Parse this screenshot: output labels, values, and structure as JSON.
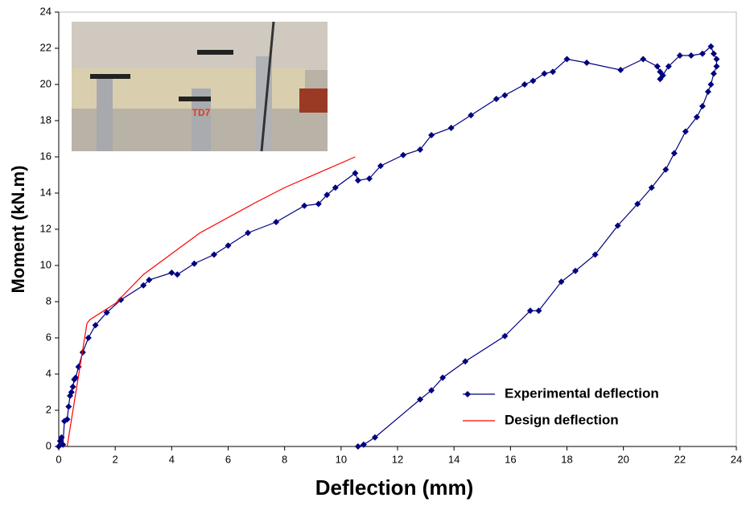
{
  "chart_data": {
    "type": "line",
    "xlabel": "Deflection (mm)",
    "ylabel": "Moment (kN.m)",
    "inset_label": "TD7",
    "xlim": [
      0,
      24
    ],
    "ylim": [
      0,
      24
    ],
    "xticks": [
      0,
      2,
      4,
      6,
      8,
      10,
      12,
      14,
      16,
      18,
      20,
      22,
      24
    ],
    "yticks": [
      0,
      2,
      4,
      6,
      8,
      10,
      12,
      14,
      16,
      18,
      20,
      22,
      24
    ],
    "grid": false,
    "legend": "lower right",
    "series": [
      {
        "name": "Experimental deflection",
        "color": "#000080",
        "marker": "diamond",
        "x": [
          0,
          0.05,
          0.1,
          0.15,
          0.2,
          0.3,
          0.35,
          0.4,
          0.45,
          0.5,
          0.55,
          0.6,
          0.7,
          0.85,
          1.05,
          1.3,
          1.7,
          2.2,
          3.0,
          3.2,
          4.0,
          4.2,
          4.8,
          5.5,
          6.0,
          6.7,
          7.7,
          8.7,
          9.2,
          9.5,
          9.8,
          10.5,
          10.6,
          11.0,
          11.4,
          12.2,
          12.8,
          13.2,
          13.9,
          14.6,
          15.5,
          15.8,
          16.5,
          16.8,
          17.2,
          17.5,
          18.0,
          18.7,
          19.9,
          20.7,
          21.2,
          21.3,
          21.4,
          21.3,
          21.6,
          22.0,
          22.4,
          22.8,
          23.1,
          23.2,
          23.3,
          23.3,
          23.2,
          23.1,
          23.0,
          22.8,
          22.6,
          22.2,
          21.8,
          21.5,
          21.0,
          20.5,
          19.8,
          19.0,
          18.3,
          17.8,
          17.0,
          16.7,
          15.8,
          14.4,
          13.6,
          13.2,
          12.8,
          11.2,
          10.8,
          10.6
        ],
        "values": [
          0,
          0.3,
          0.5,
          0.1,
          1.4,
          1.5,
          2.2,
          2.8,
          3.0,
          3.3,
          3.7,
          3.8,
          4.4,
          5.2,
          6.0,
          6.7,
          7.4,
          8.1,
          8.9,
          9.2,
          9.6,
          9.5,
          10.1,
          10.6,
          11.1,
          11.8,
          12.4,
          13.3,
          13.4,
          13.9,
          14.3,
          15.1,
          14.7,
          14.8,
          15.5,
          16.1,
          16.4,
          17.2,
          17.6,
          18.3,
          19.2,
          19.4,
          20.0,
          20.2,
          20.6,
          20.7,
          21.4,
          21.2,
          20.8,
          21.4,
          21.0,
          20.7,
          20.5,
          20.3,
          21.0,
          21.6,
          21.6,
          21.7,
          22.1,
          21.7,
          21.4,
          21.0,
          20.6,
          20.0,
          19.6,
          18.8,
          18.2,
          17.4,
          16.2,
          15.3,
          14.3,
          13.4,
          12.2,
          10.6,
          9.7,
          9.1,
          7.5,
          7.5,
          6.1,
          4.7,
          3.8,
          3.1,
          2.6,
          0.5,
          0.1,
          0
        ]
      },
      {
        "name": "Design deflection",
        "color": "#ff0000",
        "marker": "none",
        "x": [
          0.3,
          0.4,
          1.0,
          1.1,
          2.0,
          3.0,
          5.0,
          7.0,
          8.0,
          10.5
        ],
        "values": [
          0,
          1.0,
          6.8,
          7.0,
          7.9,
          9.5,
          11.8,
          13.5,
          14.3,
          16.0
        ]
      }
    ]
  }
}
